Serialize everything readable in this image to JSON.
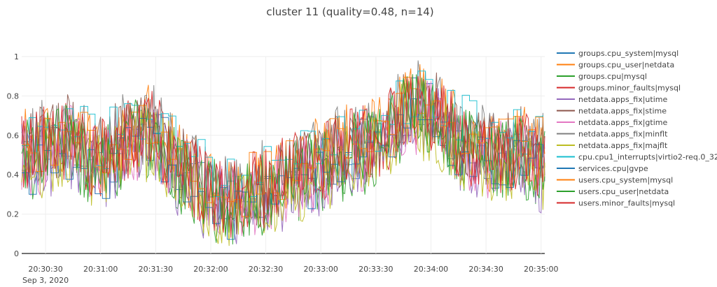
{
  "chart_data": {
    "type": "line",
    "title": "cluster 11 (quality=0.48, n=14)",
    "xlabel": "",
    "ylabel": "",
    "x_start": "20:30:17",
    "x_end": "20:35:02",
    "x_ticks": [
      "20:30:30",
      "20:31:00",
      "20:31:30",
      "20:32:00",
      "20:32:30",
      "20:33:00",
      "20:33:30",
      "20:34:00",
      "20:34:30",
      "20:35:00"
    ],
    "x_tick_date": "Sep 3, 2020",
    "ylim": [
      0,
      1
    ],
    "y_ticks": [
      "0",
      "0.2",
      "0.4",
      "0.6",
      "0.8",
      "1"
    ],
    "grid": true,
    "legend_position": "right",
    "series": [
      {
        "name": "groups.cpu_system|mysql",
        "color": "#1f77b4",
        "step": true
      },
      {
        "name": "groups.cpu_user|netdata",
        "color": "#ff7f0e",
        "step": false
      },
      {
        "name": "groups.cpu|mysql",
        "color": "#2ca02c",
        "step": false
      },
      {
        "name": "groups.minor_faults|mysql",
        "color": "#d62728",
        "step": false
      },
      {
        "name": "netdata.apps_fix|utime",
        "color": "#9467bd",
        "step": false
      },
      {
        "name": "netdata.apps_fix|stime",
        "color": "#8c564b",
        "step": false
      },
      {
        "name": "netdata.apps_fix|gtime",
        "color": "#e377c2",
        "step": false
      },
      {
        "name": "netdata.apps_fix|minflt",
        "color": "#7f7f7f",
        "step": false
      },
      {
        "name": "netdata.apps_fix|majflt",
        "color": "#bcbd22",
        "step": false
      },
      {
        "name": "cpu.cpu1_interrupts|virtio2-req.0_32",
        "color": "#17becf",
        "step": true
      },
      {
        "name": "services.cpu|gvpe",
        "color": "#1f77b4",
        "step": true
      },
      {
        "name": "users.cpu_system|mysql",
        "color": "#ff7f0e",
        "step": true
      },
      {
        "name": "users.cpu_user|netdata",
        "color": "#2ca02c",
        "step": false
      },
      {
        "name": "users.minor_faults|mysql",
        "color": "#d62728",
        "step": false
      }
    ],
    "trend": [
      [
        0,
        0.5
      ],
      [
        10,
        0.52
      ],
      [
        25,
        0.58
      ],
      [
        40,
        0.45
      ],
      [
        55,
        0.55
      ],
      [
        70,
        0.62
      ],
      [
        85,
        0.45
      ],
      [
        100,
        0.3
      ],
      [
        115,
        0.26
      ],
      [
        130,
        0.32
      ],
      [
        150,
        0.4
      ],
      [
        165,
        0.46
      ],
      [
        180,
        0.52
      ],
      [
        195,
        0.55
      ],
      [
        210,
        0.74
      ],
      [
        225,
        0.7
      ],
      [
        240,
        0.55
      ],
      [
        255,
        0.48
      ],
      [
        270,
        0.52
      ],
      [
        285,
        0.45
      ]
    ],
    "series_offsets": [
      0.0,
      0.04,
      -0.03,
      0.02,
      -0.05,
      0.03,
      -0.02,
      0.05,
      -0.04,
      0.1,
      -0.06,
      0.06,
      -0.01,
      0.01
    ]
  }
}
